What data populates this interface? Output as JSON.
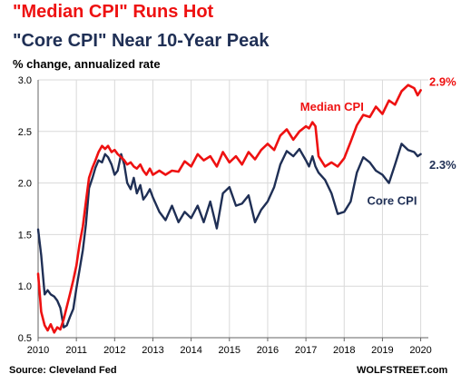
{
  "chart_data": {
    "type": "line",
    "title": "\"Median CPI\" Runs Hot",
    "subtitle": "\"Core CPI\" Near 10-Year Peak",
    "ylabel": "% change, annualized rate",
    "xlabel": "",
    "x_ticks": [
      "2010",
      "2011",
      "2012",
      "2013",
      "2014",
      "2015",
      "2016",
      "2017",
      "2018",
      "2019",
      "2020"
    ],
    "y_ticks": [
      "0.5",
      "1.0",
      "1.5",
      "2.0",
      "2.5",
      "3.0"
    ],
    "xlim": [
      2010,
      2020.2
    ],
    "ylim": [
      0.5,
      3.0
    ],
    "grid": true,
    "series": [
      {
        "name": "Median CPI",
        "color": "#ee1111",
        "end_label": "2.9%",
        "x": [
          2010.0,
          2010.08,
          2010.17,
          2010.25,
          2010.33,
          2010.42,
          2010.5,
          2010.58,
          2010.67,
          2010.75,
          2010.83,
          2010.92,
          2011.0,
          2011.08,
          2011.17,
          2011.25,
          2011.33,
          2011.42,
          2011.5,
          2011.58,
          2011.67,
          2011.75,
          2011.83,
          2011.92,
          2012.0,
          2012.08,
          2012.17,
          2012.25,
          2012.33,
          2012.42,
          2012.5,
          2012.58,
          2012.67,
          2012.75,
          2012.83,
          2012.92,
          2013.0,
          2013.17,
          2013.33,
          2013.5,
          2013.67,
          2013.83,
          2014.0,
          2014.17,
          2014.33,
          2014.5,
          2014.67,
          2014.83,
          2015.0,
          2015.17,
          2015.33,
          2015.5,
          2015.67,
          2015.83,
          2016.0,
          2016.17,
          2016.33,
          2016.5,
          2016.67,
          2016.83,
          2017.0,
          2017.08,
          2017.17,
          2017.25,
          2017.33,
          2017.5,
          2017.67,
          2017.83,
          2018.0,
          2018.17,
          2018.33,
          2018.5,
          2018.67,
          2018.83,
          2019.0,
          2019.17,
          2019.33,
          2019.5,
          2019.67,
          2019.83,
          2019.92,
          2020.0
        ],
        "y": [
          1.12,
          0.75,
          0.62,
          0.57,
          0.63,
          0.55,
          0.6,
          0.58,
          0.68,
          0.8,
          0.92,
          1.06,
          1.2,
          1.4,
          1.58,
          1.82,
          2.05,
          2.15,
          2.22,
          2.3,
          2.36,
          2.33,
          2.36,
          2.3,
          2.32,
          2.28,
          2.25,
          2.22,
          2.18,
          2.2,
          2.16,
          2.14,
          2.18,
          2.12,
          2.08,
          2.14,
          2.08,
          2.12,
          2.08,
          2.12,
          2.11,
          2.21,
          2.16,
          2.28,
          2.22,
          2.26,
          2.16,
          2.3,
          2.2,
          2.26,
          2.18,
          2.3,
          2.23,
          2.32,
          2.38,
          2.32,
          2.46,
          2.52,
          2.42,
          2.5,
          2.55,
          2.53,
          2.59,
          2.55,
          2.26,
          2.16,
          2.2,
          2.16,
          2.24,
          2.4,
          2.56,
          2.66,
          2.64,
          2.74,
          2.67,
          2.8,
          2.76,
          2.89,
          2.95,
          2.92,
          2.85,
          2.9
        ]
      },
      {
        "name": "Core CPI",
        "color": "#1f2f55",
        "end_label": "2.3%",
        "x": [
          2010.0,
          2010.08,
          2010.17,
          2010.25,
          2010.33,
          2010.42,
          2010.5,
          2010.58,
          2010.67,
          2010.75,
          2010.83,
          2010.92,
          2011.0,
          2011.08,
          2011.17,
          2011.25,
          2011.33,
          2011.42,
          2011.5,
          2011.58,
          2011.67,
          2011.75,
          2011.83,
          2011.92,
          2012.0,
          2012.08,
          2012.17,
          2012.25,
          2012.33,
          2012.42,
          2012.5,
          2012.58,
          2012.67,
          2012.75,
          2012.83,
          2012.92,
          2013.0,
          2013.17,
          2013.33,
          2013.5,
          2013.67,
          2013.83,
          2014.0,
          2014.17,
          2014.33,
          2014.5,
          2014.67,
          2014.83,
          2015.0,
          2015.17,
          2015.33,
          2015.5,
          2015.67,
          2015.83,
          2016.0,
          2016.17,
          2016.33,
          2016.5,
          2016.67,
          2016.83,
          2017.0,
          2017.08,
          2017.17,
          2017.25,
          2017.33,
          2017.5,
          2017.67,
          2017.83,
          2018.0,
          2018.17,
          2018.33,
          2018.5,
          2018.67,
          2018.83,
          2019.0,
          2019.17,
          2019.33,
          2019.5,
          2019.67,
          2019.83,
          2019.92,
          2020.0
        ],
        "y": [
          1.55,
          1.3,
          0.92,
          0.96,
          0.92,
          0.9,
          0.86,
          0.79,
          0.6,
          0.62,
          0.7,
          0.78,
          0.98,
          1.15,
          1.35,
          1.6,
          1.95,
          2.05,
          2.15,
          2.22,
          2.2,
          2.28,
          2.25,
          2.18,
          2.08,
          2.12,
          2.28,
          2.18,
          2.0,
          1.94,
          2.05,
          1.9,
          1.98,
          1.84,
          1.88,
          1.94,
          1.86,
          1.72,
          1.64,
          1.78,
          1.62,
          1.72,
          1.66,
          1.78,
          1.62,
          1.82,
          1.56,
          1.9,
          1.96,
          1.78,
          1.8,
          1.88,
          1.62,
          1.74,
          1.82,
          1.96,
          2.18,
          2.31,
          2.26,
          2.33,
          2.22,
          2.16,
          2.26,
          2.16,
          2.1,
          2.03,
          1.9,
          1.7,
          1.72,
          1.82,
          2.1,
          2.25,
          2.2,
          2.12,
          2.08,
          2.0,
          2.18,
          2.38,
          2.32,
          2.3,
          2.26,
          2.28
        ]
      }
    ]
  },
  "footer": {
    "source": "Source: Cleveland Fed",
    "brand": "WOLFSTREET.com"
  }
}
